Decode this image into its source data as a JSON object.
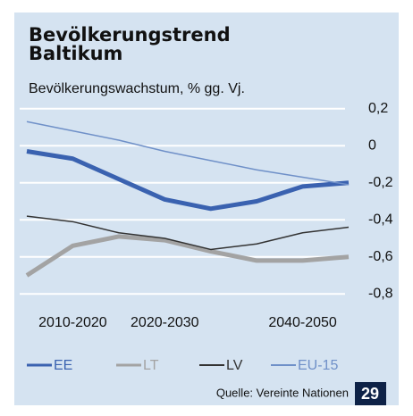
{
  "chart_data": {
    "type": "line",
    "title": "Bevölkerungstrend Baltikum",
    "subtitle": "Bevölkerungswachstum, % gg. Vj.",
    "source": "Quelle: Vereinte Nationen",
    "page_number": "29",
    "categories": [
      null,
      "2010-2020",
      null,
      "2020-2030",
      null,
      null,
      "2040-2050",
      null
    ],
    "series": [
      {
        "name": "EE",
        "color": "#3a62b0",
        "values": [
          -0.03,
          -0.07,
          -0.18,
          -0.29,
          -0.34,
          -0.3,
          -0.22,
          -0.2
        ]
      },
      {
        "name": "LT",
        "color": "#a3a3a3",
        "values": [
          -0.7,
          -0.54,
          -0.49,
          -0.51,
          -0.57,
          -0.62,
          -0.62,
          -0.6
        ]
      },
      {
        "name": "LV",
        "color": "#333333",
        "values": [
          -0.38,
          -0.41,
          -0.47,
          -0.5,
          -0.56,
          -0.53,
          -0.47,
          -0.44
        ]
      },
      {
        "name": "EU-15",
        "color": "#6f90c8",
        "values": [
          0.13,
          0.08,
          0.03,
          -0.03,
          -0.08,
          -0.13,
          -0.17,
          -0.21
        ]
      }
    ],
    "ylim": [
      -0.9,
      0.3
    ],
    "yticks": [
      {
        "value": 0.2,
        "label": "0,2"
      },
      0,
      {
        "value": -0.2,
        "label": "-0,2"
      },
      {
        "value": -0.4,
        "label": "-0,4"
      },
      {
        "value": -0.6,
        "label": "-0,6"
      },
      {
        "value": -0.8,
        "label": "-0,8"
      }
    ],
    "grid": true
  }
}
